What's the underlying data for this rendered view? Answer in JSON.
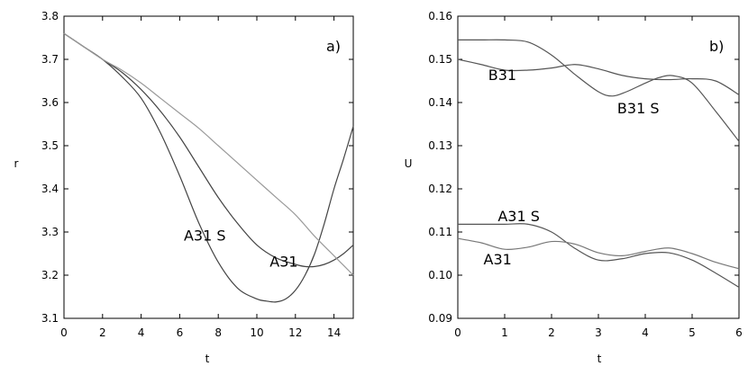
{
  "chart_data": [
    {
      "type": "line",
      "panel_label": "a)",
      "xlabel": "t",
      "ylabel": "r",
      "xlim": [
        0,
        15
      ],
      "ylim": [
        3.1,
        3.8
      ],
      "xticks": [
        0,
        2,
        4,
        6,
        8,
        10,
        12,
        14
      ],
      "yticks": [
        3.1,
        3.2,
        3.3,
        3.4,
        3.5,
        3.6,
        3.7,
        3.8
      ],
      "xtick_labels": [
        "0",
        "2",
        "4",
        "6",
        "8",
        "10",
        "12",
        "14"
      ],
      "ytick_labels": [
        "3.1",
        "3.2",
        "3.3",
        "3.4",
        "3.5",
        "3.6",
        "3.7",
        "3.8"
      ],
      "grid": false,
      "series": [
        {
          "name": "A31 S",
          "color": "#444444",
          "x": [
            0,
            1,
            2,
            3,
            4,
            5,
            6,
            7,
            8,
            9,
            10,
            10.5,
            11,
            11.5,
            12,
            12.5,
            13,
            13.5,
            14,
            14.5,
            15
          ],
          "y": [
            3.76,
            3.73,
            3.7,
            3.66,
            3.61,
            3.53,
            3.43,
            3.32,
            3.23,
            3.17,
            3.145,
            3.14,
            3.138,
            3.145,
            3.165,
            3.2,
            3.25,
            3.32,
            3.4,
            3.47,
            3.545
          ]
        },
        {
          "name": "A31",
          "color": "#444444",
          "x": [
            0,
            1,
            2,
            3,
            4,
            5,
            6,
            7,
            8,
            9,
            10,
            11,
            12,
            12.5,
            13,
            13.5,
            14,
            14.5,
            15
          ],
          "y": [
            3.76,
            3.73,
            3.7,
            3.67,
            3.63,
            3.58,
            3.52,
            3.45,
            3.38,
            3.32,
            3.27,
            3.24,
            3.225,
            3.22,
            3.22,
            3.225,
            3.235,
            3.25,
            3.27
          ]
        },
        {
          "name": "",
          "color": "#9a9a9a",
          "x": [
            0,
            1,
            2,
            3,
            4,
            5,
            6,
            7,
            8,
            9,
            10,
            11,
            12,
            13,
            14,
            15
          ],
          "y": [
            3.76,
            3.73,
            3.7,
            3.675,
            3.645,
            3.61,
            3.575,
            3.54,
            3.5,
            3.46,
            3.42,
            3.38,
            3.34,
            3.29,
            3.245,
            3.2
          ]
        }
      ],
      "annotations": [
        {
          "text": "A31 S",
          "x": 7.3,
          "y": 3.28
        },
        {
          "text": "A31",
          "x": 11.4,
          "y": 3.22
        }
      ]
    },
    {
      "type": "line",
      "panel_label": "b)",
      "xlabel": "t",
      "ylabel": "U",
      "xlim": [
        0,
        6
      ],
      "ylim": [
        0.09,
        0.16
      ],
      "xticks": [
        0,
        1,
        2,
        3,
        4,
        5,
        6
      ],
      "yticks": [
        0.09,
        0.1,
        0.11,
        0.12,
        0.13,
        0.14,
        0.15,
        0.16
      ],
      "xtick_labels": [
        "0",
        "1",
        "2",
        "3",
        "4",
        "5",
        "6"
      ],
      "ytick_labels": [
        "0.09",
        "0.10",
        "0.11",
        "0.12",
        "0.13",
        "0.14",
        "0.15",
        "0.16"
      ],
      "grid": false,
      "series": [
        {
          "name": "B31 S",
          "color": "#555555",
          "x": [
            0,
            0.5,
            1,
            1.5,
            2,
            2.5,
            3,
            3.3,
            3.6,
            4,
            4.3,
            4.6,
            5,
            5.5,
            6
          ],
          "y": [
            0.1545,
            0.1545,
            0.1545,
            0.154,
            0.151,
            0.1465,
            0.1425,
            0.1415,
            0.1425,
            0.1445,
            0.1458,
            0.1462,
            0.1445,
            0.138,
            0.131
          ]
        },
        {
          "name": "B31",
          "color": "#555555",
          "x": [
            0,
            0.5,
            1,
            1.5,
            2,
            2.5,
            3,
            3.5,
            4,
            4.5,
            5,
            5.5,
            6
          ],
          "y": [
            0.15,
            0.1488,
            0.1475,
            0.1475,
            0.148,
            0.1488,
            0.1478,
            0.1463,
            0.1455,
            0.1453,
            0.1455,
            0.145,
            0.1418
          ]
        },
        {
          "name": "A31 S",
          "color": "#555555",
          "x": [
            0,
            0.5,
            1,
            1.5,
            2,
            2.5,
            3,
            3.5,
            4,
            4.5,
            5,
            5.5,
            6
          ],
          "y": [
            0.1118,
            0.1118,
            0.1118,
            0.1118,
            0.11,
            0.1062,
            0.1035,
            0.1038,
            0.105,
            0.1052,
            0.1035,
            0.1005,
            0.0972
          ]
        },
        {
          "name": "A31",
          "color": "#777777",
          "x": [
            0,
            0.5,
            1,
            1.5,
            2,
            2.5,
            3,
            3.5,
            4,
            4.5,
            5,
            5.5,
            6
          ],
          "y": [
            0.1085,
            0.1075,
            0.106,
            0.1065,
            0.1078,
            0.1072,
            0.1052,
            0.1045,
            0.1055,
            0.1063,
            0.105,
            0.103,
            0.1015
          ]
        }
      ],
      "annotations": [
        {
          "text": "B31",
          "x": 0.95,
          "y": 0.1452
        },
        {
          "text": "B31 S",
          "x": 3.85,
          "y": 0.1375
        },
        {
          "text": "A31 S",
          "x": 1.3,
          "y": 0.1125
        },
        {
          "text": "A31",
          "x": 0.85,
          "y": 0.1025
        }
      ]
    }
  ]
}
